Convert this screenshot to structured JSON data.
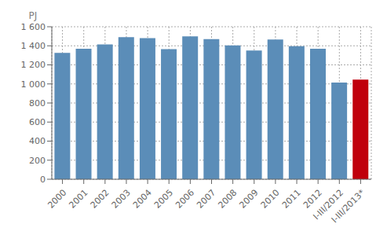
{
  "chart_data": {
    "type": "bar",
    "ylabel": "PJ",
    "categories": [
      "2000",
      "2001",
      "2002",
      "2003",
      "2004",
      "2005",
      "2006",
      "2007",
      "2008",
      "2009",
      "2010",
      "2011",
      "2012",
      "I-III/2012",
      "I-III/2013*"
    ],
    "values": [
      1325,
      1370,
      1415,
      1490,
      1480,
      1365,
      1500,
      1470,
      1405,
      1350,
      1465,
      1395,
      1370,
      1015,
      1045
    ],
    "colors": [
      "#5B8DB8",
      "#5B8DB8",
      "#5B8DB8",
      "#5B8DB8",
      "#5B8DB8",
      "#5B8DB8",
      "#5B8DB8",
      "#5B8DB8",
      "#5B8DB8",
      "#5B8DB8",
      "#5B8DB8",
      "#5B8DB8",
      "#5B8DB8",
      "#5B8DB8",
      "#C0000C"
    ],
    "ylim": [
      0,
      1600
    ],
    "yticks": [
      0,
      200,
      400,
      600,
      800,
      {
        "value": 1000,
        "label": "1 000"
      },
      {
        "value": 1200,
        "label": "1 200"
      },
      {
        "value": 1400,
        "label": "1 400"
      },
      {
        "value": 1600,
        "label": "1 600"
      }
    ],
    "grid": true
  }
}
